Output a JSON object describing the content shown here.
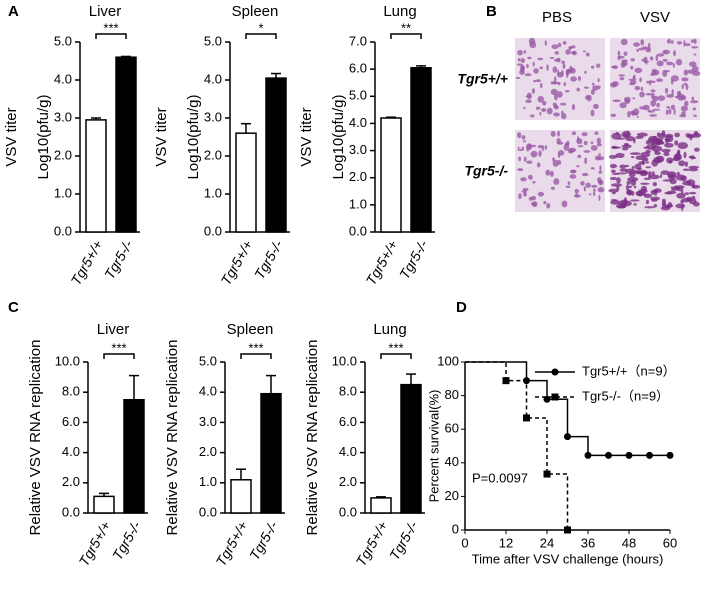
{
  "panel_labels": [
    "A",
    "B",
    "C",
    "D"
  ],
  "histology": {
    "columns": [
      "PBS",
      "VSV"
    ],
    "rows": [
      "Tgr5+/+",
      "Tgr5-/-"
    ]
  },
  "chart_data": [
    {
      "type": "bar",
      "title": "Liver",
      "ylabel": [
        "VSV titer",
        "Log10(pfu/g)"
      ],
      "categories": [
        "Tgr5+/+",
        "Tgr5-/-"
      ],
      "values": [
        2.95,
        4.6
      ],
      "errors": [
        0.05,
        0.02
      ],
      "colors": [
        "#ffffff",
        "#000000"
      ],
      "significance": "***",
      "ylim": [
        0,
        5
      ],
      "yticks": [
        {
          "value": 0,
          "label": "0.0"
        },
        {
          "value": 1,
          "label": "1.0"
        },
        {
          "value": 2,
          "label": "2.0"
        },
        {
          "value": 3,
          "label": "3.0"
        },
        {
          "value": 4,
          "label": "4.0"
        },
        {
          "value": 5,
          "label": "5.0"
        }
      ]
    },
    {
      "type": "bar",
      "title": "Spleen",
      "ylabel": [
        "VSV titer",
        "Log10(pfu/g)"
      ],
      "categories": [
        "Tgr5+/+",
        "Tgr5-/-"
      ],
      "values": [
        2.6,
        4.05
      ],
      "errors": [
        0.25,
        0.12
      ],
      "colors": [
        "#ffffff",
        "#000000"
      ],
      "significance": "*",
      "ylim": [
        0,
        5
      ],
      "yticks": [
        {
          "value": 0,
          "label": "0.0"
        },
        {
          "value": 1,
          "label": "1.0"
        },
        {
          "value": 2,
          "label": "2.0"
        },
        {
          "value": 3,
          "label": "3.0"
        },
        {
          "value": 4,
          "label": "4.0"
        },
        {
          "value": 5,
          "label": "5.0"
        }
      ]
    },
    {
      "type": "bar",
      "title": "Lung",
      "ylabel": [
        "VSV titer",
        "Log10(pfu/g)"
      ],
      "categories": [
        "Tgr5+/+",
        "Tgr5-/-"
      ],
      "values": [
        4.2,
        6.05
      ],
      "errors": [
        0.03,
        0.07
      ],
      "colors": [
        "#ffffff",
        "#000000"
      ],
      "significance": "**",
      "ylim": [
        0,
        7
      ],
      "yticks": [
        {
          "value": 0,
          "label": "0.0"
        },
        {
          "value": 1,
          "label": "1.0"
        },
        {
          "value": 2,
          "label": "2.0"
        },
        {
          "value": 3,
          "label": "3.0"
        },
        {
          "value": 4,
          "label": "4.0"
        },
        {
          "value": 5,
          "label": "5.0"
        },
        {
          "value": 6,
          "label": "6.0"
        },
        {
          "value": 7,
          "label": "7.0"
        }
      ]
    },
    {
      "type": "bar",
      "title": "Liver",
      "ylabel": [
        "Relative VSV RNA replication"
      ],
      "categories": [
        "Tgr5+/+",
        "Tgr5-/-"
      ],
      "values": [
        1.1,
        7.5
      ],
      "errors": [
        0.2,
        1.6
      ],
      "colors": [
        "#ffffff",
        "#000000"
      ],
      "significance": "***",
      "ylim": [
        0,
        10
      ],
      "yticks": [
        {
          "value": 0,
          "label": "0.0"
        },
        {
          "value": 2,
          "label": "2.0"
        },
        {
          "value": 4,
          "label": "4.0"
        },
        {
          "value": 6,
          "label": "6.0"
        },
        {
          "value": 8,
          "label": "8.0"
        },
        {
          "value": 10,
          "label": "10.0"
        }
      ]
    },
    {
      "type": "bar",
      "title": "Spleen",
      "ylabel": [
        "Relative VSV RNA replication"
      ],
      "categories": [
        "Tgr5+/+",
        "Tgr5-/-"
      ],
      "values": [
        1.1,
        3.95
      ],
      "errors": [
        0.35,
        0.6
      ],
      "colors": [
        "#ffffff",
        "#000000"
      ],
      "significance": "***",
      "ylim": [
        0,
        5
      ],
      "yticks": [
        {
          "value": 0,
          "label": "0.0"
        },
        {
          "value": 1,
          "label": "1.0"
        },
        {
          "value": 2,
          "label": "2.0"
        },
        {
          "value": 3,
          "label": "3.0"
        },
        {
          "value": 4,
          "label": "4.0"
        },
        {
          "value": 5,
          "label": "5.0"
        }
      ]
    },
    {
      "type": "bar",
      "title": "Lung",
      "ylabel": [
        "Relative VSV RNA replication"
      ],
      "categories": [
        "Tgr5+/+",
        "Tgr5-/-"
      ],
      "values": [
        1.0,
        8.5
      ],
      "errors": [
        0.07,
        0.7
      ],
      "colors": [
        "#ffffff",
        "#000000"
      ],
      "significance": "***",
      "ylim": [
        0,
        10
      ],
      "yticks": [
        {
          "value": 0,
          "label": "0.0"
        },
        {
          "value": 2,
          "label": "2.0"
        },
        {
          "value": 4,
          "label": "4.0"
        },
        {
          "value": 6,
          "label": "6.0"
        },
        {
          "value": 8,
          "label": "8.0"
        },
        {
          "value": 10,
          "label": "10.0"
        }
      ]
    },
    {
      "type": "step",
      "xlabel": "Time after VSV challenge (hours)",
      "ylabel": "Percent survival(%)",
      "annotation": "P=0.0097",
      "xlim": [
        0,
        60
      ],
      "xticks": [
        0,
        12,
        24,
        36,
        48,
        60
      ],
      "ylim": [
        0,
        100
      ],
      "yticks": [
        0,
        20,
        40,
        60,
        80,
        100
      ],
      "series": [
        {
          "name": "Tgr5+/+（n=9）",
          "color": "#000000",
          "marker": "circle",
          "dashed": false,
          "x": [
            0,
            18,
            24,
            30,
            36,
            42,
            48,
            54,
            60
          ],
          "values": [
            100,
            88.9,
            77.8,
            55.6,
            44.4,
            44.4,
            44.4,
            44.4,
            44.4
          ]
        },
        {
          "name": "Tgr5-/-（n=9）",
          "color": "#000000",
          "marker": "square",
          "dashed": true,
          "x": [
            0,
            12,
            18,
            24,
            30
          ],
          "values": [
            100,
            88.9,
            66.7,
            33.3,
            0
          ]
        }
      ]
    }
  ]
}
